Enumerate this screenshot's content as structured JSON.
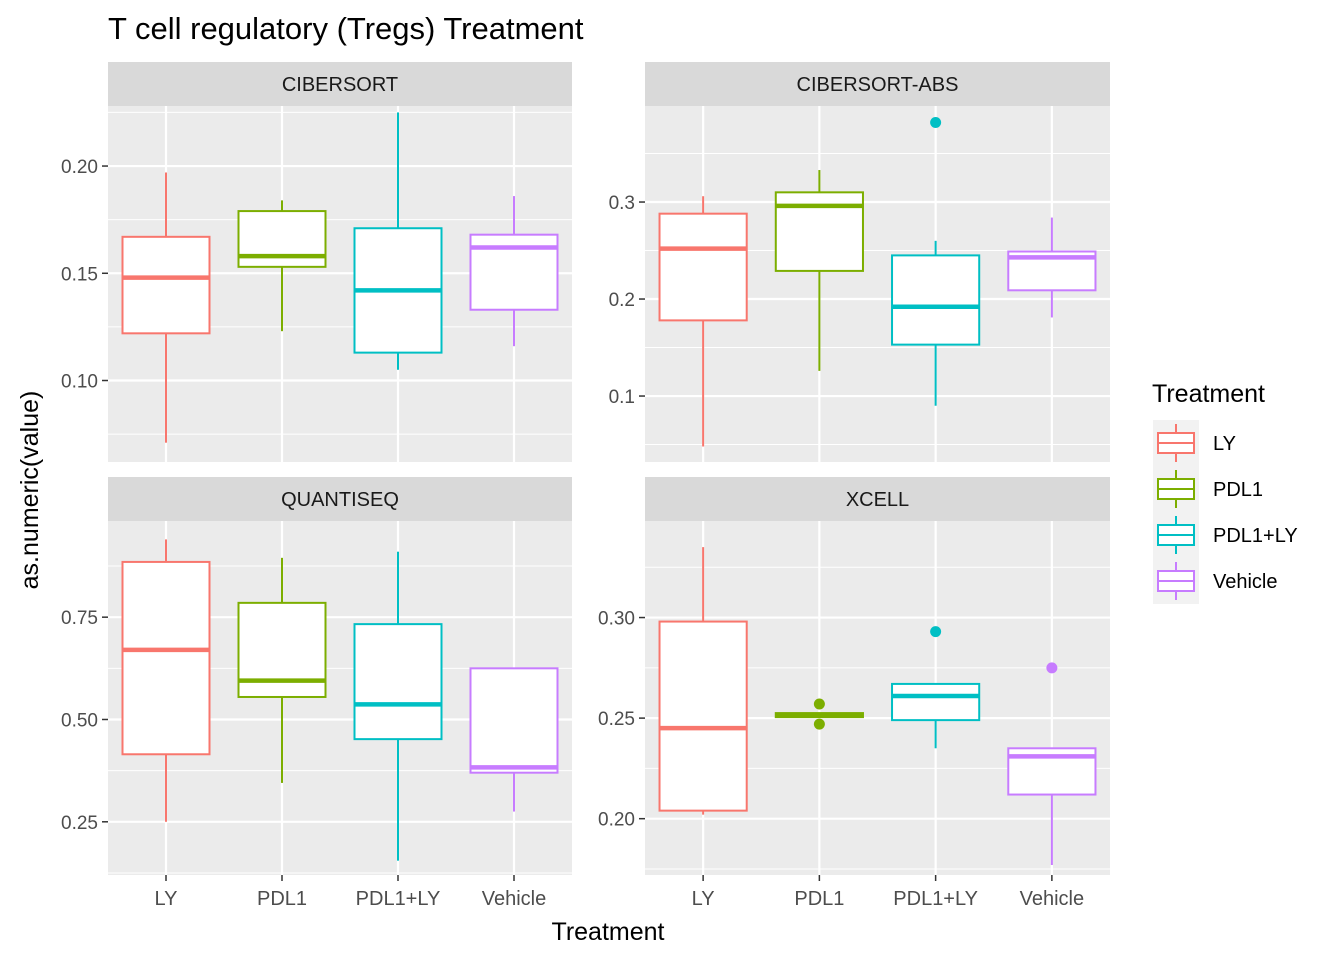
{
  "chart_title": "T cell regulatory (Tregs) Treatment",
  "x_axis_label": "Treatment",
  "y_axis_label": "as.numeric(value)",
  "legend": {
    "title": "Treatment",
    "entries": [
      {
        "label": "LY",
        "color": "#F8766D"
      },
      {
        "label": "PDL1",
        "color": "#7CAE00"
      },
      {
        "label": "PDL1+LY",
        "color": "#00BFC4"
      },
      {
        "label": "Vehicle",
        "color": "#C77CFF"
      }
    ]
  },
  "chart_data": [
    {
      "type": "boxplot",
      "panel": "CIBERSORT",
      "categories": [
        "LY",
        "PDL1",
        "PDL1+LY",
        "Vehicle"
      ],
      "y_ticks": [
        "0.10",
        "0.15",
        "0.20"
      ],
      "ylim": [
        0.062,
        0.228
      ],
      "boxes": [
        {
          "category": "LY",
          "min": 0.071,
          "q1": 0.122,
          "median": 0.148,
          "q3": 0.167,
          "max": 0.197,
          "outliers": []
        },
        {
          "category": "PDL1",
          "min": 0.123,
          "q1": 0.153,
          "median": 0.158,
          "q3": 0.179,
          "max": 0.184,
          "outliers": []
        },
        {
          "category": "PDL1+LY",
          "min": 0.105,
          "q1": 0.113,
          "median": 0.142,
          "q3": 0.171,
          "max": 0.225,
          "outliers": []
        },
        {
          "category": "Vehicle",
          "min": 0.116,
          "q1": 0.133,
          "median": 0.162,
          "q3": 0.168,
          "max": 0.186,
          "outliers": []
        }
      ]
    },
    {
      "type": "boxplot",
      "panel": "CIBERSORT-ABS",
      "categories": [
        "LY",
        "PDL1",
        "PDL1+LY",
        "Vehicle"
      ],
      "y_ticks": [
        "0.1",
        "0.2",
        "0.3"
      ],
      "ylim": [
        0.032,
        0.399
      ],
      "boxes": [
        {
          "category": "LY",
          "min": 0.048,
          "q1": 0.178,
          "median": 0.252,
          "q3": 0.288,
          "max": 0.306,
          "outliers": []
        },
        {
          "category": "PDL1",
          "min": 0.126,
          "q1": 0.229,
          "median": 0.296,
          "q3": 0.31,
          "max": 0.333,
          "outliers": []
        },
        {
          "category": "PDL1+LY",
          "min": 0.09,
          "q1": 0.153,
          "median": 0.192,
          "q3": 0.245,
          "max": 0.26,
          "outliers": [
            0.382
          ]
        },
        {
          "category": "Vehicle",
          "min": 0.181,
          "q1": 0.209,
          "median": 0.243,
          "q3": 0.249,
          "max": 0.284,
          "outliers": []
        }
      ]
    },
    {
      "type": "boxplot",
      "panel": "QUANTISEQ",
      "categories": [
        "LY",
        "PDL1",
        "PDL1+LY",
        "Vehicle"
      ],
      "y_ticks": [
        "0.25",
        "0.50",
        "0.75"
      ],
      "ylim": [
        0.12,
        0.985
      ],
      "boxes": [
        {
          "category": "LY",
          "min": 0.25,
          "q1": 0.415,
          "median": 0.67,
          "q3": 0.885,
          "max": 0.94,
          "outliers": []
        },
        {
          "category": "PDL1",
          "min": 0.345,
          "q1": 0.555,
          "median": 0.595,
          "q3": 0.785,
          "max": 0.895,
          "outliers": []
        },
        {
          "category": "PDL1+LY",
          "min": 0.155,
          "q1": 0.452,
          "median": 0.537,
          "q3": 0.733,
          "max": 0.91,
          "outliers": []
        },
        {
          "category": "Vehicle",
          "min": 0.275,
          "q1": 0.37,
          "median": 0.383,
          "q3": 0.625,
          "max": 0.625,
          "outliers": []
        }
      ]
    },
    {
      "type": "boxplot",
      "panel": "XCELL",
      "categories": [
        "LY",
        "PDL1",
        "PDL1+LY",
        "Vehicle"
      ],
      "y_ticks": [
        "0.20",
        "0.25",
        "0.30"
      ],
      "ylim": [
        0.172,
        0.348
      ],
      "boxes": [
        {
          "category": "LY",
          "min": 0.202,
          "q1": 0.204,
          "median": 0.245,
          "q3": 0.298,
          "max": 0.335,
          "outliers": []
        },
        {
          "category": "PDL1",
          "min": 0.2505,
          "q1": 0.2505,
          "median": 0.2515,
          "q3": 0.2525,
          "max": 0.2525,
          "outliers": [
            0.247,
            0.257
          ]
        },
        {
          "category": "PDL1+LY",
          "min": 0.235,
          "q1": 0.249,
          "median": 0.261,
          "q3": 0.267,
          "max": 0.267,
          "outliers": [
            0.293
          ]
        },
        {
          "category": "Vehicle",
          "min": 0.177,
          "q1": 0.212,
          "median": 0.231,
          "q3": 0.235,
          "max": 0.235,
          "outliers": [
            0.275
          ]
        }
      ]
    }
  ]
}
